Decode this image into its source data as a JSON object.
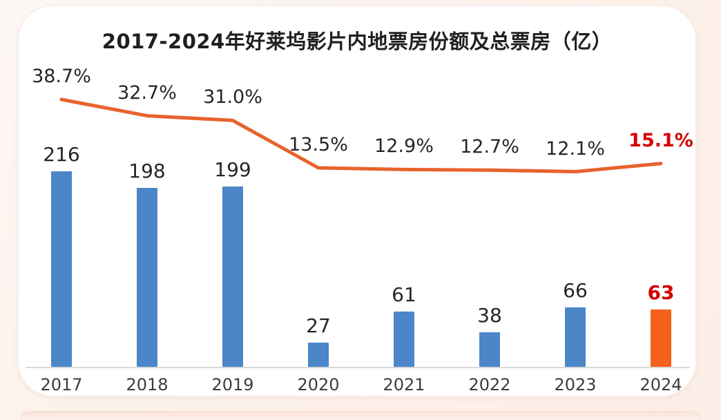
{
  "chart_data": {
    "type": "bar+line",
    "title": "2017-2024年好莱坞影片内地票房份额及总票房（亿）",
    "categories": [
      "2017",
      "2018",
      "2019",
      "2020",
      "2021",
      "2022",
      "2023",
      "2024"
    ],
    "bars": {
      "values": [
        216,
        198,
        199,
        27,
        61,
        38,
        66,
        63
      ],
      "labels": [
        "216",
        "198",
        "199",
        "27",
        "61",
        "38",
        "66",
        "63"
      ]
    },
    "line": {
      "values": [
        38.7,
        32.7,
        31.0,
        13.5,
        12.9,
        12.7,
        12.1,
        15.1
      ],
      "labels": [
        "38.7%",
        "32.7%",
        "31.0%",
        "13.5%",
        "12.9%",
        "12.7%",
        "12.1%",
        "15.1%"
      ]
    },
    "highlight_index": 7,
    "colors": {
      "bar": "#4a86c8",
      "bar_highlight": "#f4611c",
      "line": "#e8632c",
      "text": "#262626",
      "highlight_text": "#d60000",
      "axis": "#d9d9d9"
    },
    "grid": false,
    "legend": "none",
    "value_axis_visible": false
  }
}
